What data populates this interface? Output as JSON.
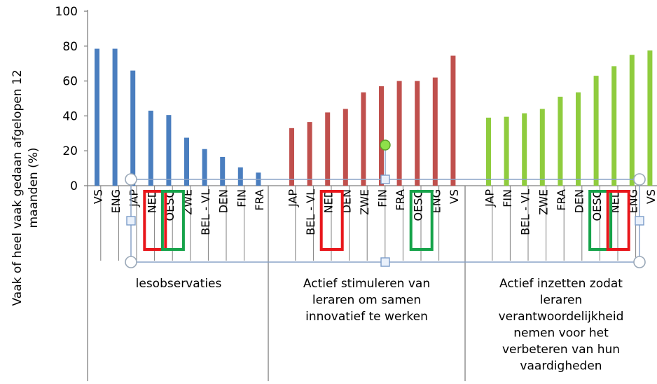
{
  "chart_data": {
    "type": "bar",
    "ylabel": "Vaak of heel vaak gedaan afgelopen 12 maanden (%)",
    "ylim": [
      0,
      100
    ],
    "yticks": [
      0,
      20,
      40,
      60,
      80,
      100
    ],
    "grid": false,
    "groups": [
      {
        "name": "lesobservaties",
        "color": "#4a7ebf",
        "categories": [
          "VS",
          "ENG",
          "JAP",
          "NED",
          "OESO",
          "ZWE",
          "BEL - VL",
          "DEN",
          "FIN",
          "FRA"
        ],
        "values": [
          78.5,
          78.5,
          66,
          43,
          40.5,
          27.5,
          21,
          16.5,
          10.5,
          7.5
        ]
      },
      {
        "name": "Actief stimuleren van leraren om samen innovatief te werken",
        "color": "#c0504d",
        "categories": [
          "JAP",
          "BEL - VL",
          "NED",
          "DEN",
          "ZWE",
          "FIN",
          "FRA",
          "OESO",
          "ENG",
          "VS"
        ],
        "values": [
          33,
          36.5,
          42,
          44,
          53.5,
          57,
          60,
          60,
          62,
          74.5
        ]
      },
      {
        "name": "Actief inzetten zodat leraren verantwoordelijkheid nemen voor het verbeteren van hun vaardigheden",
        "color": "#8fcc3e",
        "categories": [
          "JAP",
          "FIN",
          "BEL - VL",
          "ZWE",
          "FRA",
          "DEN",
          "OESO",
          "NED",
          "ENG",
          "VS"
        ],
        "values": [
          39,
          39.5,
          41.5,
          44,
          51,
          53.5,
          63,
          68.5,
          75,
          77.5
        ]
      }
    ],
    "annotations": {
      "red_box": "NED",
      "green_box": "OESO",
      "box_color_red": "#e8161b",
      "box_color_green": "#16a34a"
    }
  }
}
